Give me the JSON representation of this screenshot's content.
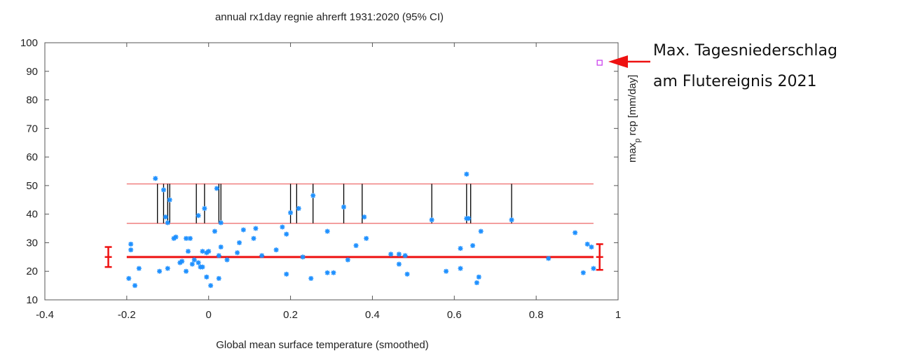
{
  "chart_data": {
    "type": "scatter",
    "title": "annual  rx1day regnie ahrerft 1931:2020 (95% CI)",
    "xlabel": "Global mean surface temperature (smoothed)",
    "ylabel": "max",
    "ylabel_sub": "p",
    "ylabel_rest": " rcp [mm/day]",
    "xlim": [
      -0.4,
      1.0
    ],
    "ylim": [
      10,
      100
    ],
    "xticks": [
      -0.4,
      -0.2,
      0,
      0.2,
      0.4,
      0.6,
      0.8,
      1
    ],
    "xtick_labels": [
      "-0.4",
      "-0.2",
      "0",
      "0.2",
      "0.4",
      "0.6",
      "0.8",
      "1"
    ],
    "yticks": [
      10,
      20,
      30,
      40,
      50,
      60,
      70,
      80,
      90,
      100
    ],
    "ytick_labels": [
      "10",
      "20",
      "30",
      "40",
      "50",
      "60",
      "70",
      "80",
      "90",
      "100"
    ],
    "grid": false,
    "colors": {
      "points": "#1e90ff",
      "fit_line": "#ee1111",
      "bound_lines": "#f08080",
      "stems": "#000000",
      "observed_2021": "#cc44ee",
      "arrow": "#ee1111"
    },
    "points": [
      {
        "x": -0.195,
        "y": 17.5
      },
      {
        "x": -0.19,
        "y": 29.5
      },
      {
        "x": -0.19,
        "y": 27.5
      },
      {
        "x": -0.18,
        "y": 15
      },
      {
        "x": -0.17,
        "y": 21
      },
      {
        "x": -0.13,
        "y": 52.5
      },
      {
        "x": -0.12,
        "y": 20
      },
      {
        "x": -0.11,
        "y": 48.5
      },
      {
        "x": -0.105,
        "y": 39
      },
      {
        "x": -0.1,
        "y": 37
      },
      {
        "x": -0.1,
        "y": 21
      },
      {
        "x": -0.095,
        "y": 45
      },
      {
        "x": -0.085,
        "y": 31.5
      },
      {
        "x": -0.08,
        "y": 32
      },
      {
        "x": -0.07,
        "y": 23
      },
      {
        "x": -0.065,
        "y": 23.5
      },
      {
        "x": -0.055,
        "y": 31.5
      },
      {
        "x": -0.055,
        "y": 20
      },
      {
        "x": -0.05,
        "y": 27
      },
      {
        "x": -0.045,
        "y": 31.5
      },
      {
        "x": -0.04,
        "y": 22.5
      },
      {
        "x": -0.035,
        "y": 24
      },
      {
        "x": -0.025,
        "y": 23
      },
      {
        "x": -0.025,
        "y": 39.5
      },
      {
        "x": -0.02,
        "y": 21.5
      },
      {
        "x": -0.015,
        "y": 27
      },
      {
        "x": -0.015,
        "y": 21.5
      },
      {
        "x": -0.01,
        "y": 42
      },
      {
        "x": -0.005,
        "y": 26.5
      },
      {
        "x": -0.005,
        "y": 18
      },
      {
        "x": 0.0,
        "y": 27
      },
      {
        "x": 0.005,
        "y": 15
      },
      {
        "x": 0.015,
        "y": 34
      },
      {
        "x": 0.02,
        "y": 49
      },
      {
        "x": 0.025,
        "y": 25.5
      },
      {
        "x": 0.025,
        "y": 17.5
      },
      {
        "x": 0.03,
        "y": 28.5
      },
      {
        "x": 0.03,
        "y": 37
      },
      {
        "x": 0.045,
        "y": 24
      },
      {
        "x": 0.07,
        "y": 26.5
      },
      {
        "x": 0.075,
        "y": 30
      },
      {
        "x": 0.085,
        "y": 34.5
      },
      {
        "x": 0.11,
        "y": 31.5
      },
      {
        "x": 0.115,
        "y": 35
      },
      {
        "x": 0.13,
        "y": 25.5
      },
      {
        "x": 0.165,
        "y": 27.5
      },
      {
        "x": 0.18,
        "y": 35.5
      },
      {
        "x": 0.19,
        "y": 19
      },
      {
        "x": 0.19,
        "y": 33
      },
      {
        "x": 0.2,
        "y": 40.5
      },
      {
        "x": 0.22,
        "y": 42
      },
      {
        "x": 0.23,
        "y": 25
      },
      {
        "x": 0.25,
        "y": 17.5
      },
      {
        "x": 0.255,
        "y": 46.5
      },
      {
        "x": 0.29,
        "y": 19.5
      },
      {
        "x": 0.29,
        "y": 34
      },
      {
        "x": 0.305,
        "y": 19.5
      },
      {
        "x": 0.33,
        "y": 42.5
      },
      {
        "x": 0.34,
        "y": 24
      },
      {
        "x": 0.36,
        "y": 29
      },
      {
        "x": 0.38,
        "y": 39
      },
      {
        "x": 0.385,
        "y": 31.5
      },
      {
        "x": 0.445,
        "y": 26
      },
      {
        "x": 0.465,
        "y": 26
      },
      {
        "x": 0.465,
        "y": 22.5
      },
      {
        "x": 0.48,
        "y": 25.5
      },
      {
        "x": 0.485,
        "y": 19
      },
      {
        "x": 0.545,
        "y": 38
      },
      {
        "x": 0.58,
        "y": 20
      },
      {
        "x": 0.615,
        "y": 28
      },
      {
        "x": 0.615,
        "y": 21
      },
      {
        "x": 0.63,
        "y": 54
      },
      {
        "x": 0.63,
        "y": 38.5
      },
      {
        "x": 0.635,
        "y": 38.5
      },
      {
        "x": 0.645,
        "y": 29
      },
      {
        "x": 0.655,
        "y": 16
      },
      {
        "x": 0.66,
        "y": 18
      },
      {
        "x": 0.665,
        "y": 34
      },
      {
        "x": 0.74,
        "y": 38
      },
      {
        "x": 0.83,
        "y": 24.5
      },
      {
        "x": 0.895,
        "y": 33.5
      },
      {
        "x": 0.915,
        "y": 19.5
      },
      {
        "x": 0.925,
        "y": 29.5
      },
      {
        "x": 0.935,
        "y": 28.5
      },
      {
        "x": 0.94,
        "y": 21
      }
    ],
    "fit_line": {
      "x": [
        -0.2,
        0.94
      ],
      "y": [
        25,
        25
      ]
    },
    "upper_lines": [
      {
        "x": [
          -0.2,
          0.94
        ],
        "y": [
          36.8,
          36.8
        ]
      },
      {
        "x": [
          -0.2,
          0.94
        ],
        "y": [
          50.6,
          50.6
        ]
      }
    ],
    "stems_x": [
      -0.125,
      -0.11,
      -0.1,
      -0.095,
      -0.03,
      -0.01,
      0.025,
      0.03,
      0.2,
      0.215,
      0.255,
      0.33,
      0.375,
      0.545,
      0.63,
      0.64,
      0.74
    ],
    "stems_y": [
      36.8,
      50.6
    ],
    "error_bars": [
      {
        "x": -0.245,
        "center": 25,
        "low": 21.5,
        "high": 28.5
      },
      {
        "x": 0.955,
        "center": 25,
        "low": 20.5,
        "high": 29.5
      }
    ],
    "observed_2021": {
      "x": 0.955,
      "y": 93
    },
    "annotations": {
      "line1": "Max. Tagesniederschlag",
      "line2": "am Flutereignis 2021"
    }
  }
}
